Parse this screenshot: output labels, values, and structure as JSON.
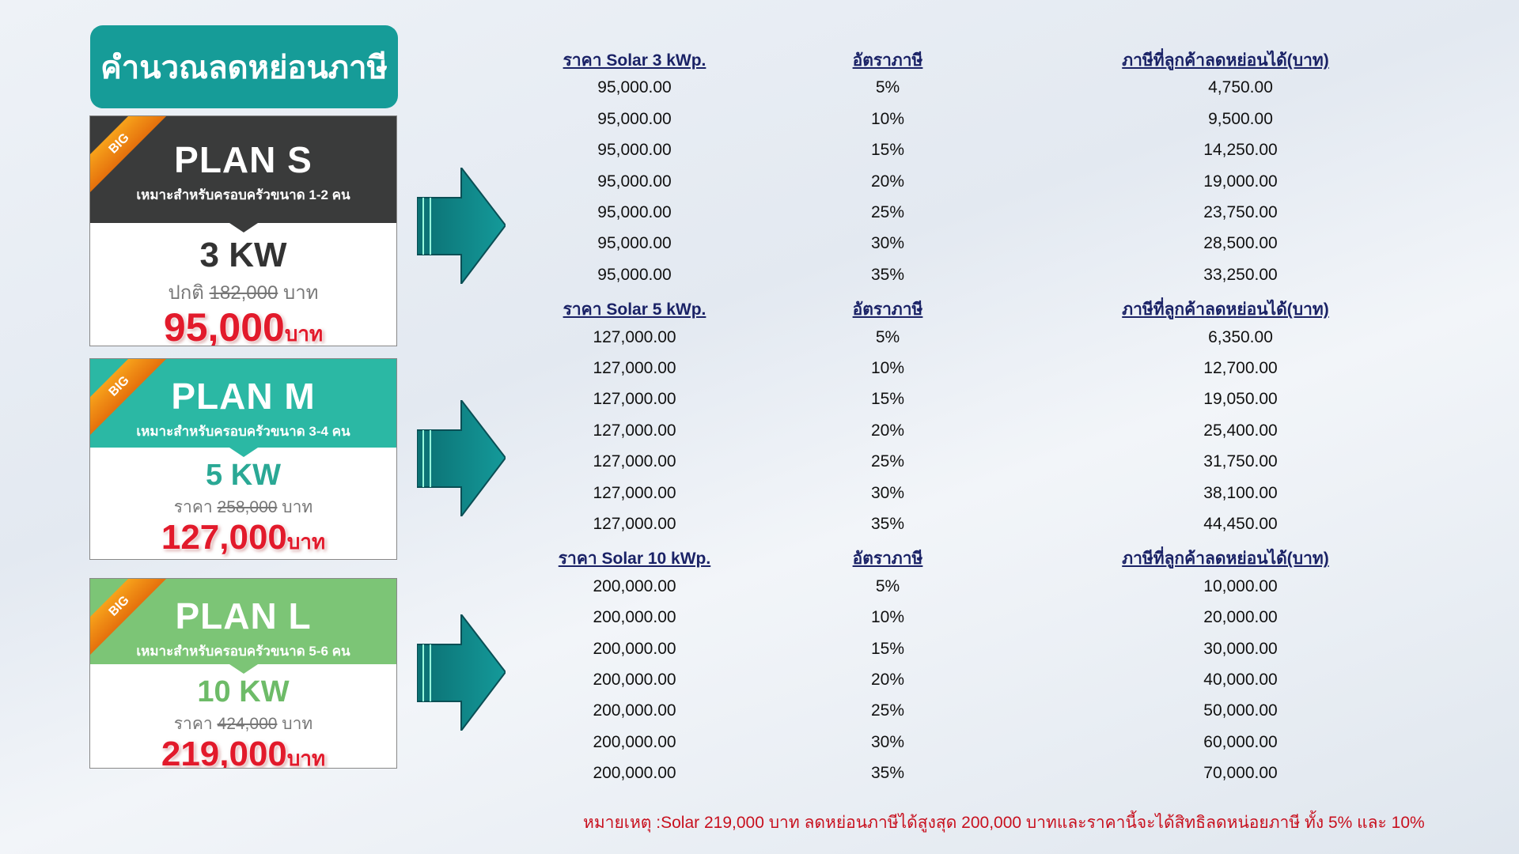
{
  "title": "คำนวณลดหย่อนภาษี",
  "colors": {
    "teal": "#169c98",
    "plan_s": "#3a3b3b",
    "plan_m": "#2bb8a4",
    "plan_l": "#7cc576",
    "price_red": "#e21a2b",
    "header_navy": "#1a2266"
  },
  "plans": [
    {
      "badge": "BIG",
      "plan": "PLAN S",
      "subtitle": "เหมาะสำหรับครอบครัวขนาด 1-2 คน",
      "kw": "3 KW",
      "old_label": "ปกติ",
      "old_price": "182,000",
      "unit": "บาท",
      "price": "95,000",
      "price_unit": "บาท"
    },
    {
      "badge": "BIG",
      "plan": "PLAN M",
      "subtitle": "เหมาะสำหรับครอบครัวขนาด 3-4 คน",
      "kw": "5 KW",
      "old_label": "ราคา",
      "old_price": "258,000",
      "unit": "บาท",
      "price": "127,000",
      "price_unit": "บาท"
    },
    {
      "badge": "BIG",
      "plan": "PLAN L",
      "subtitle": "เหมาะสำหรับครอบครัวขนาด 5-6 คน",
      "kw": "10 KW",
      "old_label": "ราคา",
      "old_price": "424,000",
      "unit": "บาท",
      "price": "219,000",
      "price_unit": "บาท"
    }
  ],
  "arrow_icon": "right-arrow-icon",
  "tables": [
    {
      "headers": [
        "ราคา Solar 3 kWp.",
        "อัตราภาษี",
        "ภาษีที่ลูกค้าลดหย่อนได้(บาท)"
      ],
      "rows": [
        [
          "95,000.00",
          "5%",
          "4,750.00"
        ],
        [
          "95,000.00",
          "10%",
          "9,500.00"
        ],
        [
          "95,000.00",
          "15%",
          "14,250.00"
        ],
        [
          "95,000.00",
          "20%",
          "19,000.00"
        ],
        [
          "95,000.00",
          "25%",
          "23,750.00"
        ],
        [
          "95,000.00",
          "30%",
          "28,500.00"
        ],
        [
          "95,000.00",
          "35%",
          "33,250.00"
        ]
      ]
    },
    {
      "headers": [
        "ราคา Solar 5 kWp.",
        "อัตราภาษี",
        "ภาษีที่ลูกค้าลดหย่อนได้(บาท)"
      ],
      "rows": [
        [
          "127,000.00",
          "5%",
          "6,350.00"
        ],
        [
          "127,000.00",
          "10%",
          "12,700.00"
        ],
        [
          "127,000.00",
          "15%",
          "19,050.00"
        ],
        [
          "127,000.00",
          "20%",
          "25,400.00"
        ],
        [
          "127,000.00",
          "25%",
          "31,750.00"
        ],
        [
          "127,000.00",
          "30%",
          "38,100.00"
        ],
        [
          "127,000.00",
          "35%",
          "44,450.00"
        ]
      ]
    },
    {
      "headers": [
        "ราคา Solar 10 kWp.",
        "อัตราภาษี",
        "ภาษีที่ลูกค้าลดหย่อนได้(บาท)"
      ],
      "rows": [
        [
          "200,000.00",
          "5%",
          "10,000.00"
        ],
        [
          "200,000.00",
          "10%",
          "20,000.00"
        ],
        [
          "200,000.00",
          "15%",
          "30,000.00"
        ],
        [
          "200,000.00",
          "20%",
          "40,000.00"
        ],
        [
          "200,000.00",
          "25%",
          "50,000.00"
        ],
        [
          "200,000.00",
          "30%",
          "60,000.00"
        ],
        [
          "200,000.00",
          "35%",
          "70,000.00"
        ]
      ]
    }
  ],
  "note": "หมายเหตุ :Solar 219,000 บาท ลดหย่อนภาษีได้สูงสุด 200,000 บาทและราคานี้จะได้สิทธิลดหน่อยภาษี ทั้ง 5% และ 10%"
}
